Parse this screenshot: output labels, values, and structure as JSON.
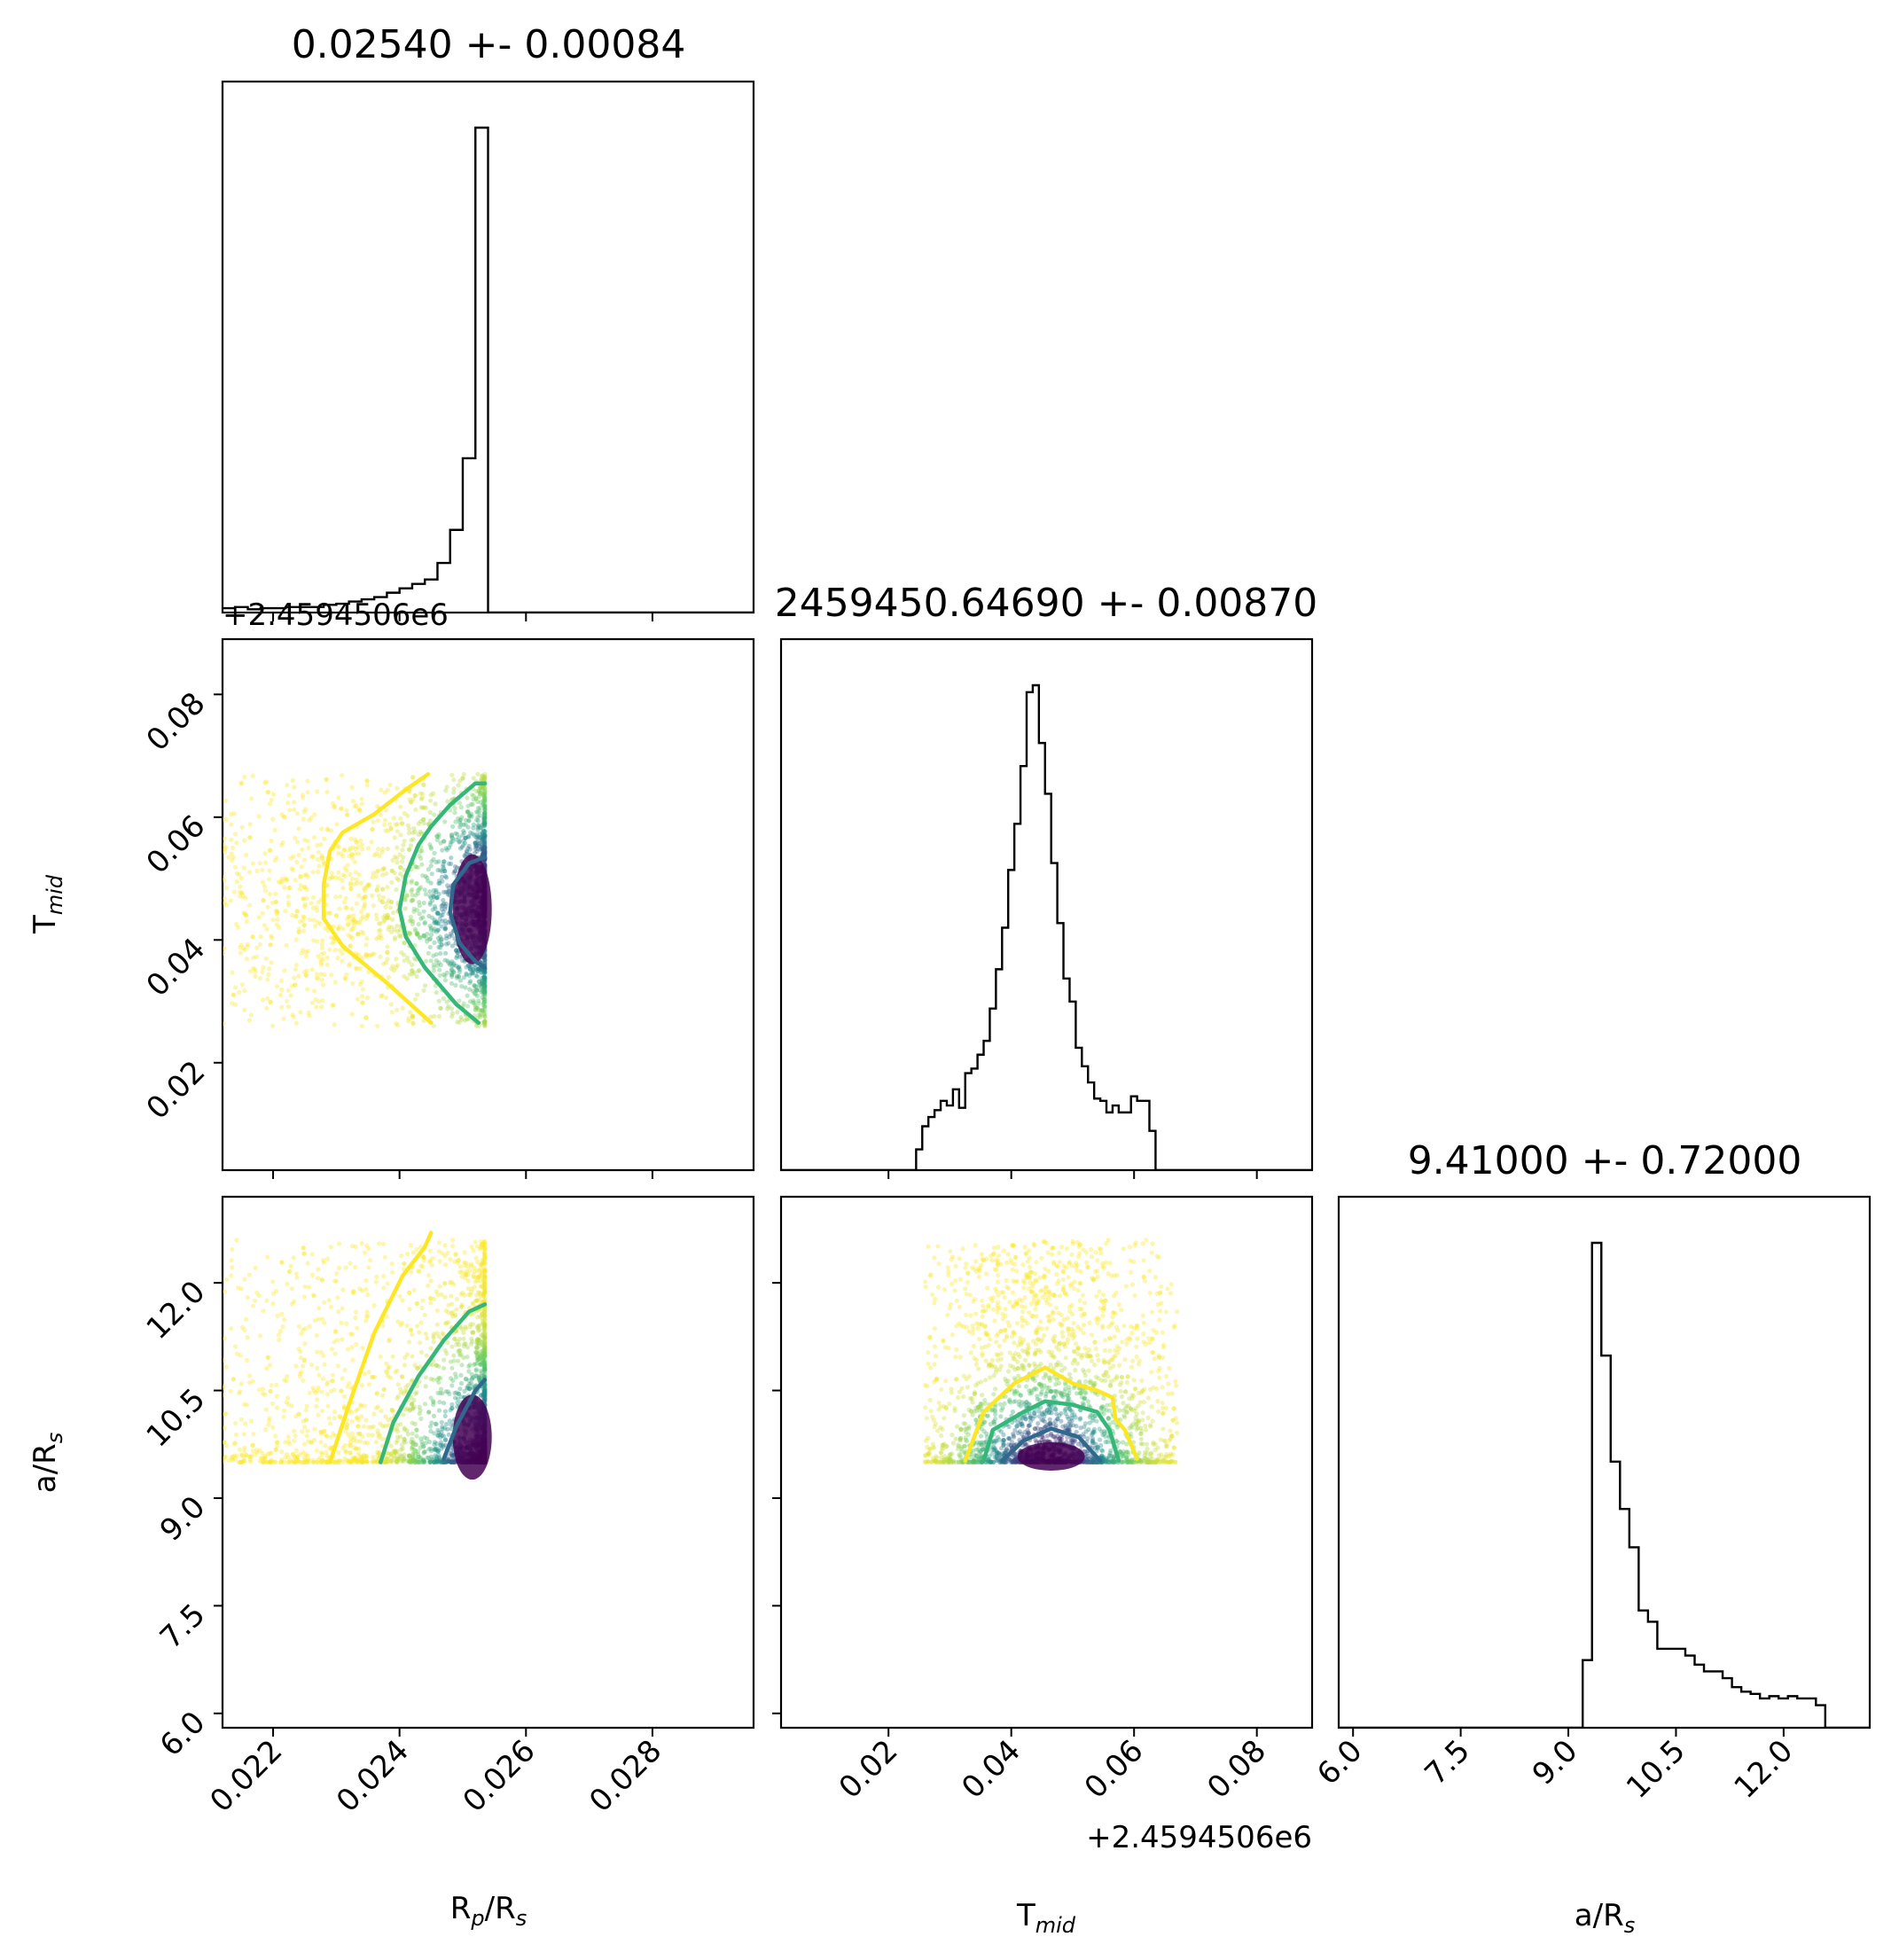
{
  "colors": {
    "frame": "#000000",
    "hist": "#000000",
    "contour_outer": "#fde725",
    "contour_mid": "#35b779",
    "contour_inner": "#31688e",
    "density_dark": "#440154",
    "density_light": "#fde725"
  },
  "titles": {
    "rp": "0.02540 +- 0.00084",
    "tmid": "2459450.64690 +- 0.00870",
    "ars": "9.41000 +- 0.72000"
  },
  "labels": {
    "x_rp": {
      "main": "R",
      "sub": "p",
      "rest": "/R",
      "sub2": "s"
    },
    "x_tmid": {
      "main": "T",
      "sub": "mid"
    },
    "x_ars": {
      "main": "a/R",
      "sub": "s"
    },
    "y_tmid": {
      "main": "T",
      "sub": "mid"
    },
    "y_ars": {
      "main": "a/R",
      "sub": "s"
    }
  },
  "offsets": {
    "top_left": "+2.4594506e6",
    "bottom_mid": "+2.4594506e6"
  },
  "ticks": {
    "rp": [
      "0.022",
      "0.024",
      "0.026",
      "0.028"
    ],
    "tmid": [
      "0.02",
      "0.04",
      "0.06",
      "0.08"
    ],
    "ars": [
      "6.0",
      "7.5",
      "9.0",
      "10.5",
      "12.0"
    ]
  },
  "chart_data": {
    "type": "corner",
    "parameters": [
      "Rp/Rs",
      "Tmid",
      "a/Rs"
    ],
    "ranges": {
      "rp": [
        0.0212,
        0.0296
      ],
      "tmid": [
        0.0025,
        0.089
      ],
      "ars": [
        5.8,
        13.2
      ]
    },
    "tick_values": {
      "rp": [
        0.022,
        0.024,
        0.026,
        0.028
      ],
      "tmid": [
        0.02,
        0.04,
        0.06,
        0.08
      ],
      "ars": [
        6.0,
        7.5,
        9.0,
        10.5,
        12.0
      ]
    },
    "histograms": {
      "rp": {
        "edges": [
          0.0212,
          0.0214,
          0.0216,
          0.0218,
          0.022,
          0.0222,
          0.0224,
          0.0226,
          0.0228,
          0.023,
          0.0232,
          0.0234,
          0.0236,
          0.0238,
          0.024,
          0.0242,
          0.0244,
          0.0246,
          0.0248,
          0.025,
          0.0252,
          0.0254,
          0.0296
        ],
        "counts": [
          4,
          5,
          3,
          4,
          4,
          5,
          5,
          5,
          7,
          8,
          10,
          12,
          14,
          18,
          22,
          26,
          30,
          45,
          75,
          140,
          440,
          0
        ]
      },
      "tmid": {
        "edges": [
          0.0025,
          0.0245,
          0.0255,
          0.0265,
          0.0275,
          0.0285,
          0.0295,
          0.0305,
          0.0315,
          0.0325,
          0.0335,
          0.0345,
          0.0355,
          0.0365,
          0.0375,
          0.0385,
          0.0395,
          0.0405,
          0.0415,
          0.0425,
          0.0435,
          0.0445,
          0.0455,
          0.0465,
          0.0475,
          0.0485,
          0.0495,
          0.0505,
          0.0515,
          0.0525,
          0.0535,
          0.0545,
          0.0555,
          0.0565,
          0.0575,
          0.0585,
          0.0595,
          0.0605,
          0.0615,
          0.0625,
          0.0635,
          0.0645,
          0.0655,
          0.0665,
          0.089
        ],
        "counts": [
          0,
          9,
          19,
          23,
          26,
          30,
          28,
          35,
          27,
          42,
          44,
          50,
          56,
          70,
          87,
          105,
          130,
          150,
          175,
          207,
          210,
          185,
          163,
          133,
          107,
          83,
          73,
          53,
          45,
          38,
          31,
          30,
          25,
          28,
          25,
          25,
          32,
          30,
          30,
          17,
          0,
          0,
          0,
          0
        ]
      },
      "ars": {
        "edges": [
          5.8,
          9.2,
          9.33,
          9.46,
          9.59,
          9.72,
          9.85,
          9.98,
          10.11,
          10.24,
          10.37,
          10.5,
          10.63,
          10.76,
          10.89,
          11.02,
          11.15,
          11.28,
          11.41,
          11.54,
          11.67,
          11.8,
          11.93,
          12.06,
          12.19,
          12.32,
          12.45,
          12.58,
          13.2
        ],
        "counts": [
          0,
          30,
          215,
          165,
          118,
          97,
          80,
          52,
          47,
          35,
          35,
          35,
          32,
          28,
          25,
          25,
          22,
          18,
          16,
          15,
          13,
          14,
          13,
          14,
          13,
          13,
          10,
          0
        ]
      }
    },
    "samples": {
      "rp_range": [
        0.0212,
        0.02535
      ],
      "tmid_range": [
        0.026,
        0.067
      ],
      "ars_range": [
        9.5,
        12.6
      ],
      "tmid_center": 0.046,
      "tmid_sd": 0.0085,
      "ars_peak": 9.5,
      "rp_peak": 0.02535
    },
    "contours": {
      "rp_tmid": {
        "outer": [
          [
            0.02445,
            0.067
          ],
          [
            0.0241,
            0.0645
          ],
          [
            0.0236,
            0.0605
          ],
          [
            0.0231,
            0.0575
          ],
          [
            0.0229,
            0.0545
          ],
          [
            0.0228,
            0.049
          ],
          [
            0.0228,
            0.0435
          ],
          [
            0.0231,
            0.039
          ],
          [
            0.0238,
            0.033
          ],
          [
            0.0245,
            0.0265
          ]
        ],
        "mid": [
          [
            0.02535,
            0.0655
          ],
          [
            0.0252,
            0.0655
          ],
          [
            0.0248,
            0.062
          ],
          [
            0.0245,
            0.0585
          ],
          [
            0.0243,
            0.0555
          ],
          [
            0.0241,
            0.0505
          ],
          [
            0.024,
            0.045
          ],
          [
            0.0241,
            0.0405
          ],
          [
            0.0244,
            0.0355
          ],
          [
            0.0249,
            0.0295
          ],
          [
            0.02525,
            0.0265
          ]
        ],
        "inner": [
          [
            0.02535,
            0.0535
          ],
          [
            0.0251,
            0.0525
          ],
          [
            0.02485,
            0.049
          ],
          [
            0.0248,
            0.0445
          ],
          [
            0.02495,
            0.0395
          ],
          [
            0.0252,
            0.0365
          ],
          [
            0.02535,
            0.0355
          ]
        ]
      },
      "rp_ars": {
        "outer": [
          [
            0.0229,
            9.5
          ],
          [
            0.0232,
            10.3
          ],
          [
            0.0236,
            11.3
          ],
          [
            0.02405,
            12.1
          ],
          [
            0.0244,
            12.5
          ],
          [
            0.0245,
            12.7
          ]
        ],
        "mid": [
          [
            0.0237,
            9.5
          ],
          [
            0.0239,
            10.05
          ],
          [
            0.0243,
            10.7
          ],
          [
            0.0247,
            11.2
          ],
          [
            0.0251,
            11.6
          ],
          [
            0.02535,
            11.7
          ]
        ],
        "inner": [
          [
            0.0247,
            9.55
          ],
          [
            0.0249,
            10.0
          ],
          [
            0.0252,
            10.5
          ],
          [
            0.02535,
            10.65
          ]
        ]
      },
      "tmid_ars": {
        "outer": [
          [
            0.0325,
            9.52
          ],
          [
            0.0355,
            10.2
          ],
          [
            0.0405,
            10.6
          ],
          [
            0.0455,
            10.82
          ],
          [
            0.05,
            10.6
          ],
          [
            0.054,
            10.5
          ],
          [
            0.0565,
            10.4
          ],
          [
            0.057,
            10.1
          ],
          [
            0.0585,
            9.95
          ],
          [
            0.0605,
            9.55
          ]
        ],
        "mid": [
          [
            0.0355,
            9.52
          ],
          [
            0.037,
            9.95
          ],
          [
            0.042,
            10.2
          ],
          [
            0.0455,
            10.35
          ],
          [
            0.05,
            10.3
          ],
          [
            0.054,
            10.2
          ],
          [
            0.056,
            9.95
          ],
          [
            0.0575,
            9.52
          ]
        ],
        "inner": [
          [
            0.0385,
            9.52
          ],
          [
            0.042,
            9.8
          ],
          [
            0.0465,
            9.97
          ],
          [
            0.051,
            9.85
          ],
          [
            0.0545,
            9.52
          ]
        ]
      }
    }
  }
}
